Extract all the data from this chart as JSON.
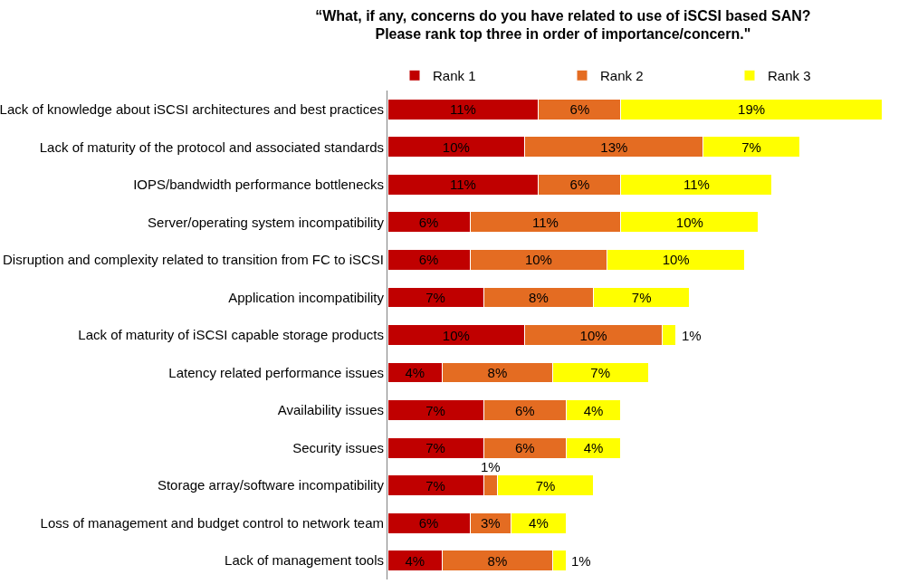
{
  "chart_data": {
    "type": "bar",
    "orientation": "horizontal",
    "stacked": true,
    "title": "“What, if any, concerns do you have related to use of iSCSI based SAN?\nPlease rank top three in order of importance/concern.\"",
    "categories": [
      "Lack of knowledge about iSCSI architectures and best practices",
      "Lack of maturity of the protocol and associated standards",
      "IOPS/bandwidth performance bottlenecks",
      "Server/operating system incompatibility",
      "Disruption and complexity related to transition from FC to iSCSI",
      "Application incompatibility",
      "Lack of maturity of iSCSI capable storage products",
      "Latency related performance issues",
      "Availability issues",
      "Security issues",
      "Storage array/software incompatibility",
      "Loss of management and budget control to network team",
      "Lack of management tools"
    ],
    "series": [
      {
        "name": "Rank 1",
        "color": "#c00000",
        "values": [
          11,
          10,
          11,
          6,
          6,
          7,
          10,
          4,
          7,
          7,
          7,
          6,
          4
        ],
        "value_labels": [
          "11%",
          "10%",
          "11%",
          "6%",
          "6%",
          "7%",
          "10%",
          "4%",
          "7%",
          "7%",
          "7%",
          "6%",
          "4%"
        ]
      },
      {
        "name": "Rank 2",
        "color": "#e46c22",
        "values": [
          6,
          13,
          6,
          11,
          10,
          8,
          10,
          8,
          6,
          6,
          1,
          3,
          8
        ],
        "value_labels": [
          "6%",
          "13%",
          "6%",
          "11%",
          "10%",
          "8%",
          "10%",
          "8%",
          "6%",
          "6%",
          "1%",
          "3%",
          "8%"
        ]
      },
      {
        "name": "Rank 3",
        "color": "#ffff00",
        "values": [
          19,
          7,
          11,
          10,
          10,
          7,
          1,
          7,
          4,
          4,
          7,
          4,
          1
        ],
        "value_labels": [
          "19%",
          "7%",
          "11%",
          "10%",
          "10%",
          "7%",
          "1%",
          "7%",
          "4%",
          "4%",
          "7%",
          "4%",
          "1%"
        ]
      }
    ],
    "legend": "top"
  }
}
